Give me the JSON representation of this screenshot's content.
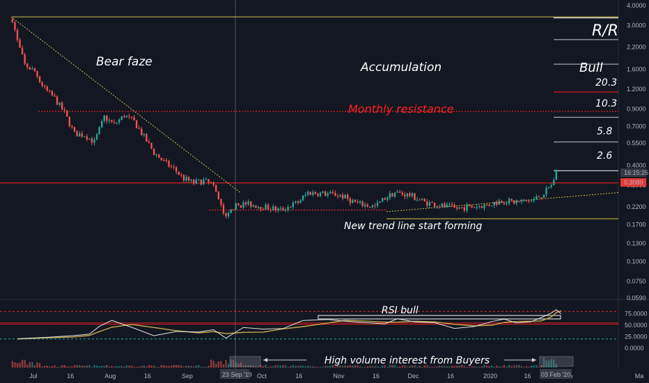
{
  "colors": {
    "background": "#131722",
    "grid": "#1f2330",
    "up": "#26a69a",
    "down": "#ef5350",
    "resistance": "#ff2020",
    "trend": "#d4c44a",
    "rsi": "#e6e6e6",
    "rsi_ma": "#c8a84b",
    "annotation": "#ffffff"
  },
  "chart_data": {
    "type": "candlestick",
    "scale": "log",
    "y_ticks": [
      "4.0000",
      "3.0000",
      "2.2000",
      "1.6000",
      "1.2000",
      "0.9000",
      "0.7000",
      "0.5500",
      "0.4000",
      "0.3000",
      "0.2200",
      "0.1700",
      "0.1300",
      "0.1000",
      "0.0750",
      "0.0590"
    ],
    "x_ticks": [
      "Jul",
      "16",
      "Aug",
      "16",
      "Sep",
      "16",
      "Oct",
      "16",
      "Nov",
      "16",
      "Dec",
      "16",
      "2020",
      "16",
      "Feb",
      "Ma"
    ],
    "crosshair_x_label": "23 Sep '19",
    "crosshair_x_label_2": "03 Feb '20",
    "price_labels": {
      "last": "0.3080",
      "timer": "16:15:26"
    },
    "price_path": [
      [
        "2019-07-01",
        3.3
      ],
      [
        "2019-07-03",
        2.4
      ],
      [
        "2019-07-06",
        1.7
      ],
      [
        "2019-07-10",
        1.55
      ],
      [
        "2019-07-14",
        1.2
      ],
      [
        "2019-07-18",
        1.05
      ],
      [
        "2019-07-22",
        0.85
      ],
      [
        "2019-07-26",
        0.63
      ],
      [
        "2019-07-30",
        0.62
      ],
      [
        "2019-08-03",
        0.56
      ],
      [
        "2019-08-07",
        0.8
      ],
      [
        "2019-08-11",
        0.72
      ],
      [
        "2019-08-15",
        0.82
      ],
      [
        "2019-08-19",
        0.75
      ],
      [
        "2019-08-23",
        0.6
      ],
      [
        "2019-08-27",
        0.48
      ],
      [
        "2019-08-31",
        0.42
      ],
      [
        "2019-09-04",
        0.38
      ],
      [
        "2019-09-08",
        0.33
      ],
      [
        "2019-09-12",
        0.31
      ],
      [
        "2019-09-16",
        0.32
      ],
      [
        "2019-09-20",
        0.3
      ],
      [
        "2019-09-23",
        0.22
      ],
      [
        "2019-09-25",
        0.185
      ],
      [
        "2019-09-28",
        0.22
      ],
      [
        "2019-10-03",
        0.23
      ],
      [
        "2019-10-10",
        0.22
      ],
      [
        "2019-10-17",
        0.21
      ],
      [
        "2019-10-24",
        0.235
      ],
      [
        "2019-10-28",
        0.27
      ],
      [
        "2019-11-04",
        0.265
      ],
      [
        "2019-11-10",
        0.26
      ],
      [
        "2019-11-17",
        0.23
      ],
      [
        "2019-11-24",
        0.22
      ],
      [
        "2019-11-28",
        0.25
      ],
      [
        "2019-12-02",
        0.27
      ],
      [
        "2019-12-08",
        0.26
      ],
      [
        "2019-12-14",
        0.235
      ],
      [
        "2019-12-20",
        0.225
      ],
      [
        "2019-12-26",
        0.215
      ],
      [
        "2020-01-02",
        0.22
      ],
      [
        "2020-01-08",
        0.225
      ],
      [
        "2020-01-14",
        0.24
      ],
      [
        "2020-01-20",
        0.235
      ],
      [
        "2020-01-26",
        0.24
      ],
      [
        "2020-01-30",
        0.26
      ],
      [
        "2020-02-03",
        0.3
      ],
      [
        "2020-02-05",
        0.36
      ]
    ],
    "annotations": {
      "bear": "Bear faze",
      "accumulation": "Accumulation",
      "monthly_resistance": "Monthly resistance",
      "new_trend": "New trend line start forming",
      "rr_title": "R/R",
      "bull": "Bull",
      "rr_values": [
        "20.3",
        "10.3",
        "5.8",
        "2.6"
      ],
      "rsi_bull": "RSI bull",
      "volume_note": "High volume interest from Buyers"
    },
    "levels": {
      "monthly_resistance": 0.87,
      "support": 0.21,
      "breakout": 0.31,
      "top": 3.4,
      "rr_targets": [
        3.35,
        2.45,
        1.72,
        1.15,
        0.8,
        0.56,
        0.37
      ],
      "range_low": 0.185
    },
    "rsi": {
      "y_ticks": [
        "75.0000",
        "50.0000",
        "25.0000",
        "0.0000"
      ],
      "levels": {
        "upper": 80,
        "lower": 20
      },
      "path": [
        [
          "2019-07-03",
          20
        ],
        [
          "2019-07-15",
          25
        ],
        [
          "2019-07-25",
          28
        ],
        [
          "2019-08-01",
          30
        ],
        [
          "2019-08-05",
          50
        ],
        [
          "2019-08-10",
          57
        ],
        [
          "2019-08-18",
          48
        ],
        [
          "2019-08-27",
          30
        ],
        [
          "2019-09-05",
          36
        ],
        [
          "2019-09-14",
          34
        ],
        [
          "2019-09-20",
          38
        ],
        [
          "2019-09-25",
          23
        ],
        [
          "2019-10-02",
          42
        ],
        [
          "2019-10-10",
          40
        ],
        [
          "2019-10-18",
          44
        ],
        [
          "2019-10-26",
          57
        ],
        [
          "2019-11-05",
          63
        ],
        [
          "2019-11-12",
          62
        ],
        [
          "2019-11-20",
          52
        ],
        [
          "2019-11-28",
          56
        ],
        [
          "2019-12-03",
          62
        ],
        [
          "2019-12-10",
          58
        ],
        [
          "2019-12-18",
          52
        ],
        [
          "2019-12-26",
          46
        ],
        [
          "2020-01-03",
          48
        ],
        [
          "2020-01-10",
          56
        ],
        [
          "2020-01-15",
          64
        ],
        [
          "2020-01-20",
          54
        ],
        [
          "2020-01-26",
          58
        ],
        [
          "2020-01-30",
          66
        ],
        [
          "2020-02-03",
          80
        ],
        [
          "2020-02-05",
          86
        ],
        [
          "2020-02-07",
          78
        ]
      ]
    }
  }
}
